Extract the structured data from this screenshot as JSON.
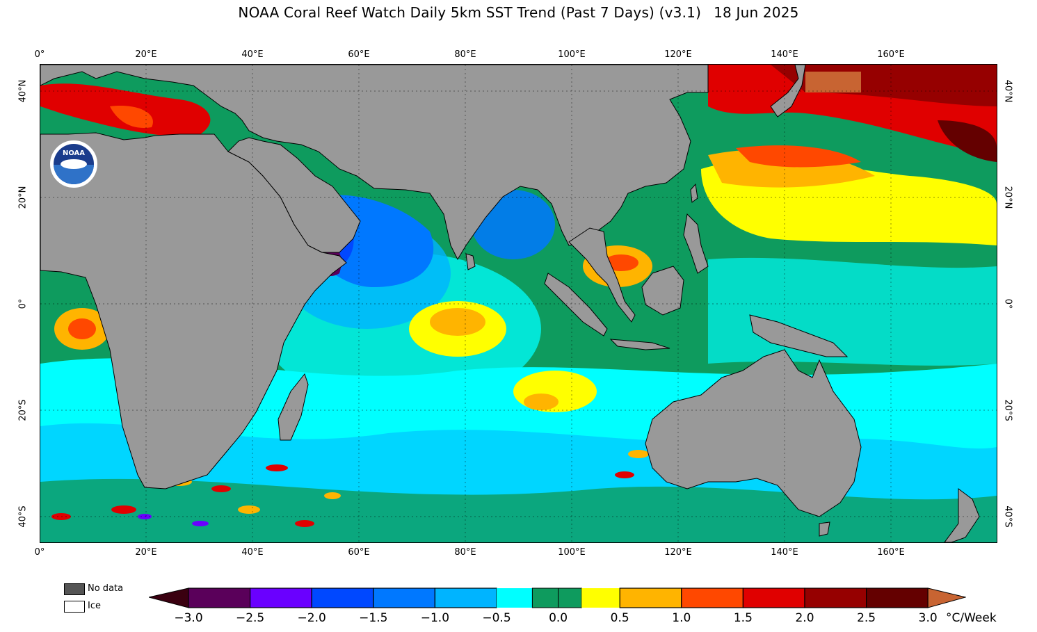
{
  "title": "NOAA Coral Reef Watch Daily 5km SST Trend (Past 7 Days)  (v3.1)",
  "date": "18 Jun 2025",
  "lon_labels": [
    "0°",
    "20°E",
    "40°E",
    "60°E",
    "80°E",
    "100°E",
    "120°E",
    "140°E",
    "160°E"
  ],
  "lat_labels": [
    "40°N",
    "20°N",
    "0°",
    "20°S",
    "40°S"
  ],
  "legend": {
    "nodata_label": "No data",
    "ice_label": "Ice",
    "nodata_color": "#555555",
    "ice_color": "#ffffff"
  },
  "colorbar": {
    "labels": [
      "−3.0",
      "−2.5",
      "−2.0",
      "−1.5",
      "−1.0",
      "−0.5",
      "0.0",
      "0.5",
      "1.0",
      "1.5",
      "2.0",
      "2.5",
      "3.0"
    ],
    "unit": "°C/Week",
    "colors": [
      "#5a005a",
      "#6a00ff",
      "#0048ff",
      "#0078ff",
      "#00b4ff",
      "#00ffff",
      "#0e9b5e",
      "#ffff00",
      "#ffb400",
      "#ff4800",
      "#e00000",
      "#960000",
      "#640000"
    ],
    "under_color": "#3a0010",
    "over_color": "#c86432"
  },
  "colors": {
    "land": "#999999",
    "ocean_base": "#0e9b5e",
    "coast": "#000000"
  },
  "logo_text": "NOAA"
}
